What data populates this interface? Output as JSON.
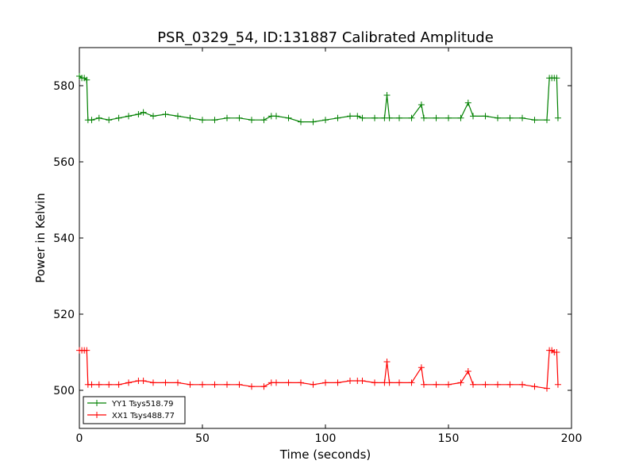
{
  "chart_data": {
    "type": "line",
    "title": "PSR_0329_54, ID:131887 Calibrated Amplitude",
    "xlabel": "Time (seconds)",
    "ylabel": "Power in Kelvin",
    "xlim": [
      0,
      200
    ],
    "ylim": [
      490,
      590
    ],
    "xticks": [
      0,
      50,
      100,
      150,
      200
    ],
    "yticks": [
      500,
      520,
      540,
      560,
      580
    ],
    "grid": false,
    "legend_position": "lower-left",
    "marker": "plus",
    "series": [
      {
        "name": "YY1 Tsys518.79",
        "color": "#008000",
        "x": [
          0,
          1,
          2,
          3,
          3.5,
          5,
          8,
          12,
          16,
          20,
          24,
          26,
          30,
          35,
          40,
          45,
          50,
          55,
          60,
          65,
          70,
          75,
          78,
          80,
          85,
          90,
          95,
          100,
          105,
          110,
          113,
          115,
          120,
          124,
          125,
          126,
          130,
          135,
          139,
          140,
          145,
          150,
          155,
          158,
          160,
          165,
          170,
          175,
          180,
          185,
          190,
          191,
          192,
          193,
          194,
          194.5
        ],
        "values": [
          582.5,
          582,
          582,
          581.5,
          571,
          571,
          571.5,
          571,
          571.5,
          572,
          572.5,
          573,
          572,
          572.5,
          572,
          571.5,
          571,
          571,
          571.5,
          571.5,
          571,
          571,
          572,
          572,
          571.5,
          570.5,
          570.5,
          571,
          571.5,
          572,
          572,
          571.5,
          571.5,
          571.5,
          577.5,
          571.5,
          571.5,
          571.5,
          575,
          571.5,
          571.5,
          571.5,
          571.5,
          575.5,
          572,
          572,
          571.5,
          571.5,
          571.5,
          571,
          571,
          582,
          582,
          582,
          582,
          571.5
        ]
      },
      {
        "name": "XX1 Tsys488.77",
        "color": "#ff0000",
        "x": [
          0,
          1,
          2,
          3,
          3.5,
          5,
          8,
          12,
          16,
          20,
          24,
          26,
          30,
          35,
          40,
          45,
          50,
          55,
          60,
          65,
          70,
          75,
          78,
          80,
          85,
          90,
          95,
          100,
          105,
          110,
          113,
          115,
          120,
          124,
          125,
          126,
          130,
          135,
          139,
          140,
          145,
          150,
          155,
          158,
          160,
          165,
          170,
          175,
          180,
          185,
          190,
          191,
          192,
          193,
          194,
          194.5
        ],
        "values": [
          510.5,
          510.5,
          510.5,
          510.5,
          501.5,
          501.5,
          501.5,
          501.5,
          501.5,
          502,
          502.5,
          502.5,
          502,
          502,
          502,
          501.5,
          501.5,
          501.5,
          501.5,
          501.5,
          501,
          501,
          502,
          502,
          502,
          502,
          501.5,
          502,
          502,
          502.5,
          502.5,
          502.5,
          502,
          502,
          507.5,
          502,
          502,
          502,
          506,
          501.5,
          501.5,
          501.5,
          502,
          505,
          501.5,
          501.5,
          501.5,
          501.5,
          501.5,
          501,
          500.5,
          510.5,
          510.5,
          510,
          510,
          501.5
        ]
      }
    ]
  }
}
